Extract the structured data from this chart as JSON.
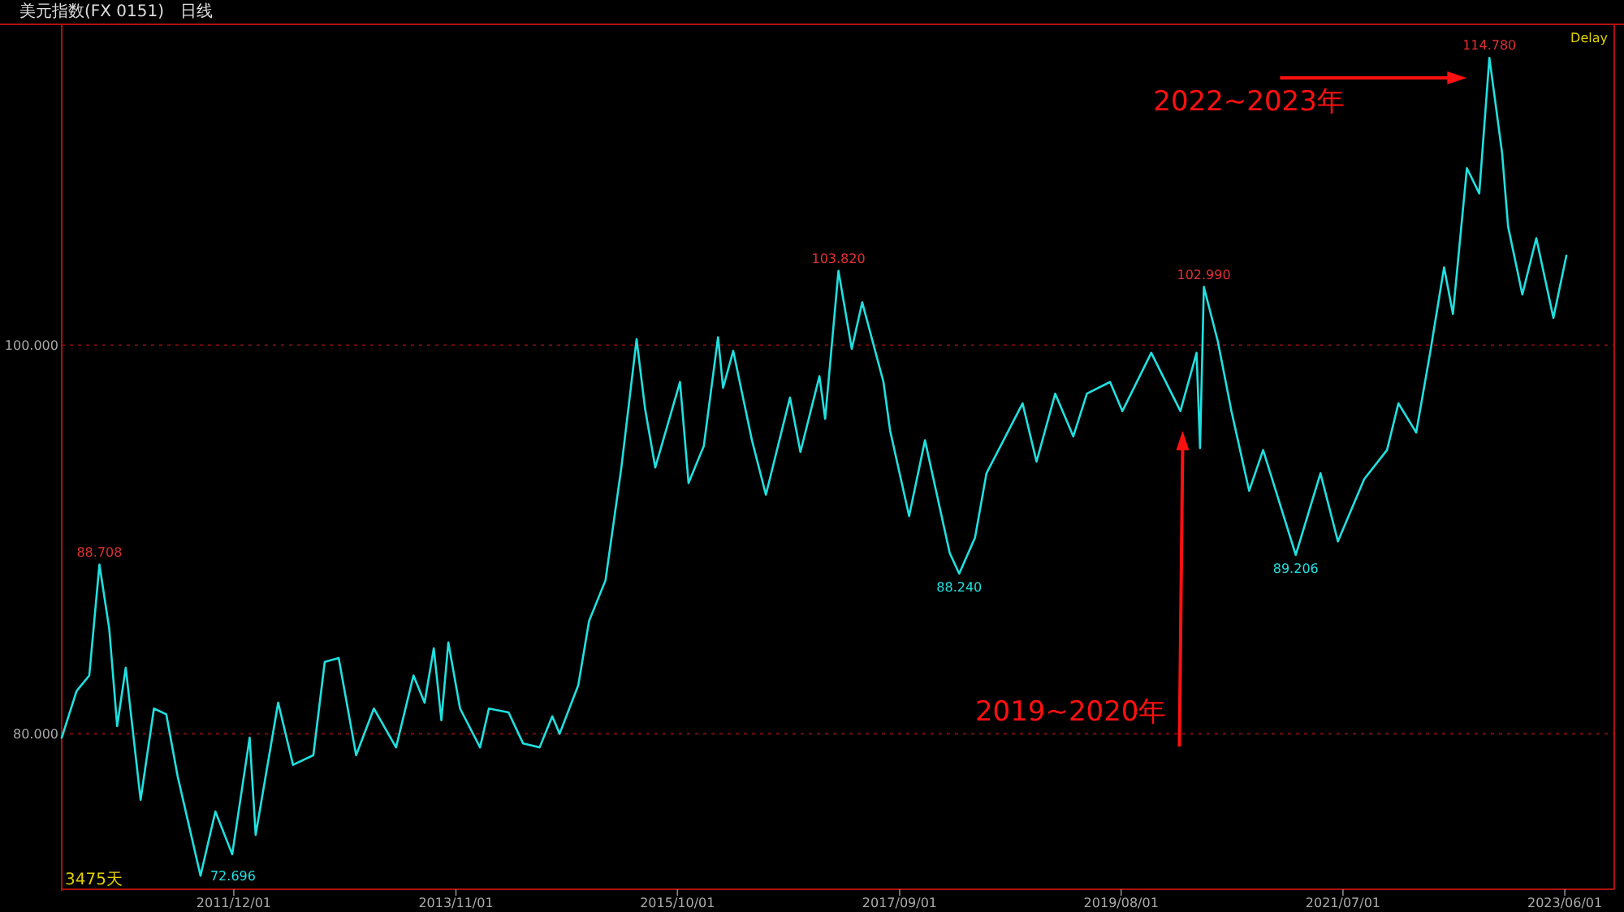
{
  "chart_data": {
    "type": "line",
    "title": "美元指数(FX 0151)",
    "subtitle": "日线",
    "xlim": [
      "2010-06-06",
      "2023-11-04"
    ],
    "ylim": [
      72.0,
      116.5
    ],
    "xticks": [
      {
        "value": "2011-12-01",
        "label": "2011/12/01"
      },
      {
        "value": "2013-11-01",
        "label": "2013/11/01"
      },
      {
        "value": "2015-10-01",
        "label": "2015/10/01"
      },
      {
        "value": "2017-09-01",
        "label": "2017/09/01"
      },
      {
        "value": "2019-08-01",
        "label": "2019/08/01"
      },
      {
        "value": "2021-07-01",
        "label": "2021/07/01"
      },
      {
        "value": "2023-06-01",
        "label": "2023/06/01"
      }
    ],
    "yticks": [
      {
        "value": 80,
        "label": "80.000"
      },
      {
        "value": 100,
        "label": "100.000"
      }
    ],
    "grid": "y",
    "series": [
      {
        "color": "#20e0e0",
        "x": [
          "2010-06-06",
          "2010-07-23",
          "2010-09-01",
          "2010-10-03",
          "2010-11-03",
          "2010-11-28",
          "2010-12-25",
          "2011-02-10",
          "2011-03-24",
          "2011-05-02",
          "2011-06-07",
          "2011-08-18",
          "2011-10-04",
          "2011-11-26",
          "2012-01-20",
          "2012-02-08",
          "2012-04-19",
          "2012-06-05",
          "2012-08-08",
          "2012-09-13",
          "2012-10-27",
          "2012-12-21",
          "2013-02-15",
          "2013-04-26",
          "2013-06-20",
          "2013-07-25",
          "2013-08-23",
          "2013-09-16",
          "2013-10-08",
          "2013-11-14",
          "2014-01-16",
          "2014-02-13",
          "2014-04-16",
          "2014-06-01",
          "2014-07-23",
          "2014-09-01",
          "2014-09-24",
          "2014-11-22",
          "2014-12-26",
          "2015-02-16",
          "2015-04-07",
          "2015-05-25",
          "2015-06-21",
          "2015-07-23",
          "2015-10-09",
          "2015-11-05",
          "2015-12-23",
          "2016-02-06",
          "2016-02-22",
          "2016-03-25",
          "2016-05-23",
          "2016-07-06",
          "2016-09-20",
          "2016-10-23",
          "2016-12-22",
          "2017-01-09",
          "2017-02-20",
          "2017-04-03",
          "2017-05-06",
          "2017-07-12",
          "2017-08-02",
          "2017-10-01",
          "2017-11-20",
          "2018-02-06",
          "2018-03-08",
          "2018-04-27",
          "2018-06-02",
          "2018-09-24",
          "2018-11-07",
          "2019-01-05",
          "2019-03-03",
          "2019-04-15",
          "2019-06-27",
          "2019-08-05",
          "2019-11-04",
          "2020-02-04",
          "2020-03-26",
          "2020-04-06",
          "2020-04-18",
          "2020-06-01",
          "2020-07-14",
          "2020-09-08",
          "2020-10-22",
          "2021-02-02",
          "2021-04-21",
          "2021-06-15",
          "2021-09-06",
          "2021-11-17",
          "2021-12-23",
          "2022-02-17",
          "2022-04-02",
          "2022-05-16",
          "2022-06-13",
          "2022-07-27",
          "2022-09-04",
          "2022-10-06",
          "2022-11-15",
          "2022-12-04",
          "2023-01-18",
          "2023-03-03",
          "2023-04-26",
          "2023-06-06"
        ],
        "values": [
          79.8,
          82.2,
          83.0,
          88.708,
          85.4,
          80.4,
          83.4,
          76.6,
          81.3,
          81.0,
          77.8,
          72.696,
          76.0,
          73.8,
          79.8,
          74.8,
          81.6,
          78.4,
          78.9,
          83.7,
          83.9,
          78.9,
          81.3,
          79.3,
          83.0,
          81.6,
          84.4,
          80.7,
          84.7,
          81.3,
          79.3,
          81.3,
          81.1,
          79.5,
          79.3,
          80.9,
          80.0,
          82.5,
          85.8,
          87.9,
          93.7,
          100.3,
          96.7,
          93.7,
          98.1,
          92.9,
          94.8,
          100.4,
          97.8,
          99.7,
          95.1,
          92.3,
          97.3,
          94.5,
          98.4,
          96.2,
          103.82,
          99.8,
          102.2,
          98.1,
          95.6,
          91.2,
          95.1,
          89.3,
          88.24,
          90.1,
          93.4,
          97.0,
          94.0,
          97.5,
          95.3,
          97.5,
          98.1,
          96.6,
          99.6,
          96.6,
          99.6,
          94.7,
          102.99,
          100.2,
          96.6,
          92.5,
          94.6,
          89.206,
          93.4,
          89.9,
          93.1,
          94.6,
          97.0,
          95.5,
          99.6,
          104.0,
          101.6,
          109.1,
          107.8,
          114.78,
          109.9,
          106.1,
          102.6,
          105.5,
          101.4,
          104.6
        ],
        "value_labels": [
          null,
          null,
          null,
          "88.708",
          null,
          null,
          null,
          null,
          null,
          null,
          null,
          "72.696",
          null,
          null,
          null,
          null,
          null,
          null,
          null,
          null,
          null,
          null,
          null,
          null,
          null,
          null,
          null,
          null,
          null,
          null,
          null,
          null,
          null,
          null,
          null,
          null,
          null,
          null,
          null,
          null,
          null,
          null,
          null,
          null,
          null,
          null,
          null,
          null,
          null,
          null,
          null,
          null,
          null,
          null,
          null,
          null,
          "103.820",
          null,
          null,
          null,
          null,
          null,
          null,
          null,
          "88.240",
          null,
          null,
          null,
          null,
          null,
          null,
          null,
          null,
          null,
          null,
          null,
          null,
          null,
          "102.990",
          null,
          null,
          null,
          null,
          "89.206",
          null,
          null,
          null,
          null,
          null,
          null,
          null,
          null,
          null,
          null,
          null,
          "114.780",
          null,
          null,
          null,
          null,
          null,
          null
        ]
      }
    ],
    "annotations": [
      "2022~2023年",
      "2019~2020年",
      "3475天",
      "Delay"
    ]
  }
}
